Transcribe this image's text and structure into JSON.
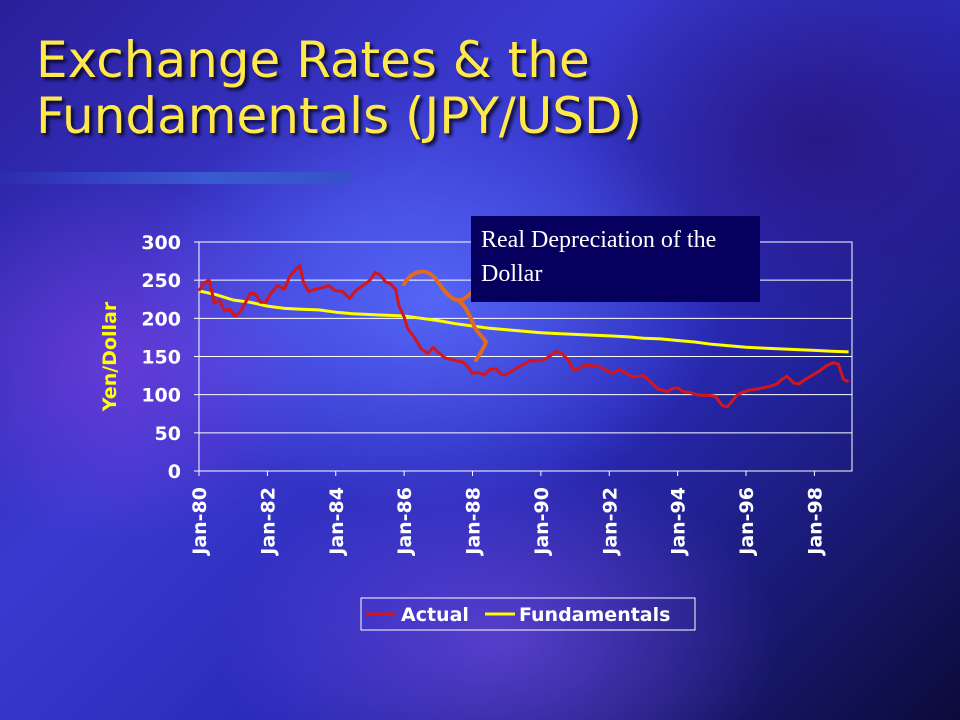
{
  "slide": {
    "title": "Exchange Rates & the\nFundamentals (JPY/USD)",
    "callout": "Real Depreciation of the Dollar"
  },
  "colors": {
    "title": "#ffe94a",
    "actual": "#d2161e",
    "fundamentals": "#ffff00",
    "brace": "#e06a20",
    "callout_bg": "#05005e"
  },
  "chart_data": {
    "type": "line",
    "title": "",
    "xlabel": "",
    "ylabel": "Yen/Dollar",
    "ylim": [
      0,
      300
    ],
    "yticks": [
      0,
      50,
      100,
      150,
      200,
      250,
      300
    ],
    "xlim": [
      1980,
      1999.1
    ],
    "xticks": [
      {
        "value": 1980,
        "label": "Jan-80"
      },
      {
        "value": 1982,
        "label": "Jan-82"
      },
      {
        "value": 1984,
        "label": "Jan-84"
      },
      {
        "value": 1986,
        "label": "Jan-86"
      },
      {
        "value": 1988,
        "label": "Jan-88"
      },
      {
        "value": 1990,
        "label": "Jan-90"
      },
      {
        "value": 1992,
        "label": "Jan-92"
      },
      {
        "value": 1994,
        "label": "Jan-94"
      },
      {
        "value": 1996,
        "label": "Jan-96"
      },
      {
        "value": 1998,
        "label": "Jan-98"
      }
    ],
    "grid": true,
    "legend_position": "bottom",
    "series": [
      {
        "name": "Actual",
        "color": "#d2161e",
        "points": [
          [
            1980.0,
            236
          ],
          [
            1980.15,
            247
          ],
          [
            1980.3,
            250
          ],
          [
            1980.45,
            220
          ],
          [
            1980.6,
            224
          ],
          [
            1980.75,
            210
          ],
          [
            1980.9,
            212
          ],
          [
            1981.05,
            203
          ],
          [
            1981.2,
            208
          ],
          [
            1981.35,
            220
          ],
          [
            1981.5,
            233
          ],
          [
            1981.65,
            232
          ],
          [
            1981.8,
            221
          ],
          [
            1981.95,
            221
          ],
          [
            1982.1,
            233
          ],
          [
            1982.3,
            243
          ],
          [
            1982.5,
            238
          ],
          [
            1982.65,
            255
          ],
          [
            1982.85,
            265
          ],
          [
            1982.95,
            269
          ],
          [
            1983.05,
            248
          ],
          [
            1983.2,
            235
          ],
          [
            1983.4,
            238
          ],
          [
            1983.6,
            240
          ],
          [
            1983.8,
            243
          ],
          [
            1983.95,
            237
          ],
          [
            1984.2,
            235
          ],
          [
            1984.4,
            226
          ],
          [
            1984.6,
            237
          ],
          [
            1984.8,
            243
          ],
          [
            1985.0,
            250
          ],
          [
            1985.15,
            260
          ],
          [
            1985.3,
            257
          ],
          [
            1985.45,
            248
          ],
          [
            1985.6,
            245
          ],
          [
            1985.75,
            238
          ],
          [
            1985.85,
            216
          ],
          [
            1986.0,
            202
          ],
          [
            1986.1,
            187
          ],
          [
            1986.3,
            175
          ],
          [
            1986.5,
            160
          ],
          [
            1986.7,
            154
          ],
          [
            1986.85,
            162
          ],
          [
            1987.0,
            155
          ],
          [
            1987.2,
            148
          ],
          [
            1987.4,
            146
          ],
          [
            1987.55,
            144
          ],
          [
            1987.7,
            143
          ],
          [
            1987.85,
            137
          ],
          [
            1988.0,
            128
          ],
          [
            1988.15,
            129
          ],
          [
            1988.35,
            126
          ],
          [
            1988.5,
            133
          ],
          [
            1988.7,
            134
          ],
          [
            1988.85,
            126
          ],
          [
            1989.0,
            127
          ],
          [
            1989.2,
            132
          ],
          [
            1989.4,
            138
          ],
          [
            1989.55,
            141
          ],
          [
            1989.7,
            145
          ],
          [
            1989.85,
            144
          ],
          [
            1990.05,
            145
          ],
          [
            1990.25,
            150
          ],
          [
            1990.45,
            157
          ],
          [
            1990.6,
            154
          ],
          [
            1990.8,
            146
          ],
          [
            1990.95,
            132
          ],
          [
            1991.1,
            134
          ],
          [
            1991.3,
            139
          ],
          [
            1991.5,
            138
          ],
          [
            1991.7,
            137
          ],
          [
            1991.9,
            132
          ],
          [
            1992.1,
            128
          ],
          [
            1992.3,
            133
          ],
          [
            1992.5,
            128
          ],
          [
            1992.7,
            123
          ],
          [
            1992.85,
            124
          ],
          [
            1993.0,
            125
          ],
          [
            1993.2,
            117
          ],
          [
            1993.4,
            108
          ],
          [
            1993.55,
            106
          ],
          [
            1993.7,
            104
          ],
          [
            1993.85,
            108
          ],
          [
            1994.0,
            109
          ],
          [
            1994.15,
            104
          ],
          [
            1994.35,
            103
          ],
          [
            1994.55,
            100
          ],
          [
            1994.75,
            99
          ],
          [
            1994.9,
            99
          ],
          [
            1995.1,
            98
          ],
          [
            1995.3,
            86
          ],
          [
            1995.45,
            84
          ],
          [
            1995.6,
            92
          ],
          [
            1995.75,
            100
          ],
          [
            1995.9,
            103
          ],
          [
            1996.1,
            106
          ],
          [
            1996.3,
            107
          ],
          [
            1996.5,
            109
          ],
          [
            1996.7,
            111
          ],
          [
            1996.9,
            114
          ],
          [
            1997.05,
            120
          ],
          [
            1997.2,
            124
          ],
          [
            1997.4,
            115
          ],
          [
            1997.55,
            114
          ],
          [
            1997.7,
            119
          ],
          [
            1997.85,
            123
          ],
          [
            1998.0,
            127
          ],
          [
            1998.15,
            131
          ],
          [
            1998.35,
            138
          ],
          [
            1998.55,
            142
          ],
          [
            1998.7,
            140
          ],
          [
            1998.85,
            120
          ],
          [
            1999.0,
            117
          ]
        ]
      },
      {
        "name": "Fundamentals",
        "color": "#ffff00",
        "points": [
          [
            1980.0,
            236
          ],
          [
            1980.5,
            231
          ],
          [
            1981.0,
            224
          ],
          [
            1981.5,
            221
          ],
          [
            1982.0,
            216
          ],
          [
            1982.5,
            213
          ],
          [
            1983.0,
            212
          ],
          [
            1983.5,
            211
          ],
          [
            1984.0,
            208
          ],
          [
            1984.5,
            206
          ],
          [
            1985.0,
            205
          ],
          [
            1985.5,
            204
          ],
          [
            1986.0,
            203
          ],
          [
            1986.5,
            200
          ],
          [
            1987.0,
            197
          ],
          [
            1987.5,
            193
          ],
          [
            1988.0,
            190
          ],
          [
            1988.5,
            187
          ],
          [
            1989.0,
            185
          ],
          [
            1989.5,
            183
          ],
          [
            1990.0,
            181
          ],
          [
            1990.5,
            180
          ],
          [
            1991.0,
            179
          ],
          [
            1991.5,
            178
          ],
          [
            1992.0,
            177
          ],
          [
            1992.5,
            176
          ],
          [
            1993.0,
            174
          ],
          [
            1993.5,
            173
          ],
          [
            1994.0,
            171
          ],
          [
            1994.5,
            169
          ],
          [
            1995.0,
            166
          ],
          [
            1995.5,
            164
          ],
          [
            1996.0,
            162
          ],
          [
            1996.5,
            161
          ],
          [
            1997.0,
            160
          ],
          [
            1997.5,
            159
          ],
          [
            1998.0,
            158
          ],
          [
            1998.5,
            157
          ],
          [
            1999.0,
            156
          ]
        ]
      }
    ]
  }
}
